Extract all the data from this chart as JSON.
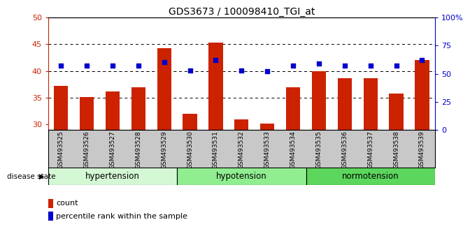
{
  "title": "GDS3673 / 100098410_TGI_at",
  "samples": [
    "GSM493525",
    "GSM493526",
    "GSM493527",
    "GSM493528",
    "GSM493529",
    "GSM493530",
    "GSM493531",
    "GSM493532",
    "GSM493533",
    "GSM493534",
    "GSM493535",
    "GSM493536",
    "GSM493537",
    "GSM493538",
    "GSM493539"
  ],
  "red_values": [
    37.2,
    35.1,
    36.2,
    37.0,
    44.2,
    32.0,
    45.3,
    31.0,
    30.2,
    37.0,
    40.0,
    38.6,
    38.6,
    35.8,
    42.0
  ],
  "blue_values": [
    57,
    57,
    57,
    57,
    60,
    53,
    62,
    53,
    52,
    57,
    59,
    57,
    57,
    57,
    62
  ],
  "groups": [
    {
      "name": "hypertension",
      "start": 0,
      "end": 5,
      "color": "#d4f7d4"
    },
    {
      "name": "hypotension",
      "start": 5,
      "end": 10,
      "color": "#90ee90"
    },
    {
      "name": "normotension",
      "start": 10,
      "end": 15,
      "color": "#5cd65c"
    }
  ],
  "ylim_left": [
    29,
    50
  ],
  "ylim_right": [
    0,
    100
  ],
  "yticks_left": [
    30,
    35,
    40,
    45,
    50
  ],
  "yticks_right": [
    0,
    25,
    50,
    75,
    100
  ],
  "grid_values": [
    35,
    40,
    45
  ],
  "bar_color": "#cc2200",
  "dot_color": "#0000cc",
  "bar_width": 0.55,
  "disease_label": "disease state",
  "legend_count": "count",
  "legend_percentile": "percentile rank within the sample",
  "background_color": "#ffffff",
  "tick_area_color": "#c8c8c8"
}
